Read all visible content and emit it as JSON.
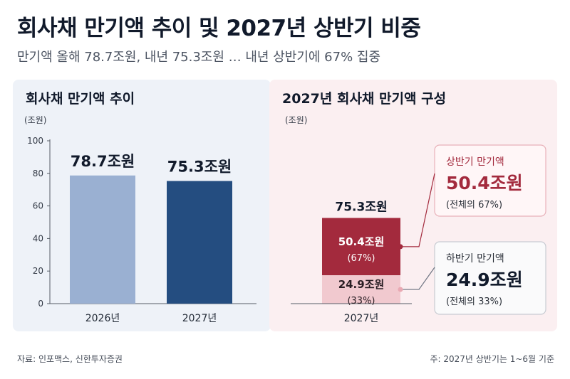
{
  "header": {
    "title": "회사채 만기액 추이 및 2027년 상반기 비중",
    "subtitle": "만기액 올해 78.7조원, 내년 75.3조원 … 내년 상반기에 67% 집중"
  },
  "footer": {
    "source": "자료: 인포맥스, 신한투자증권",
    "note": "주: 2027년 상반기는 1~6월 기준"
  },
  "colors": {
    "bar_2026": "#9ab0d2",
    "bar_2027": "#244d80",
    "first_half": "#a32a3d",
    "second_half": "#f1c9cf",
    "panel_left_bg": "#eef2f8",
    "panel_right_bg": "#fbeff1"
  },
  "chart_data": [
    {
      "type": "bar",
      "title": "회사채 만기액 추이",
      "ylabel": "(조원)",
      "categories": [
        "2026년",
        "2027년"
      ],
      "values": [
        78.7,
        75.3
      ],
      "data_labels": [
        "78.7조원",
        "75.3조원"
      ],
      "ylim": [
        0,
        100
      ],
      "yticks": [
        0,
        20,
        40,
        60,
        80,
        100
      ],
      "grid": false
    },
    {
      "type": "bar",
      "stacked": true,
      "title": "2027년 회사채 만기액 구성",
      "ylabel": "(조원)",
      "categories": [
        "2027년"
      ],
      "total": 75.3,
      "total_label": "75.3조원",
      "series": [
        {
          "name": "상반기 만기액",
          "values": [
            50.4
          ],
          "value_label": "50.4조원",
          "share_label": "(67%)",
          "callout_value": "50.4조원",
          "callout_share": "(전체의 67%)"
        },
        {
          "name": "하반기 만기액",
          "values": [
            24.9
          ],
          "value_label": "24.9조원",
          "share_label": "(33%)",
          "callout_value": "24.9조원",
          "callout_share": "(전체의 33%)"
        }
      ]
    }
  ]
}
